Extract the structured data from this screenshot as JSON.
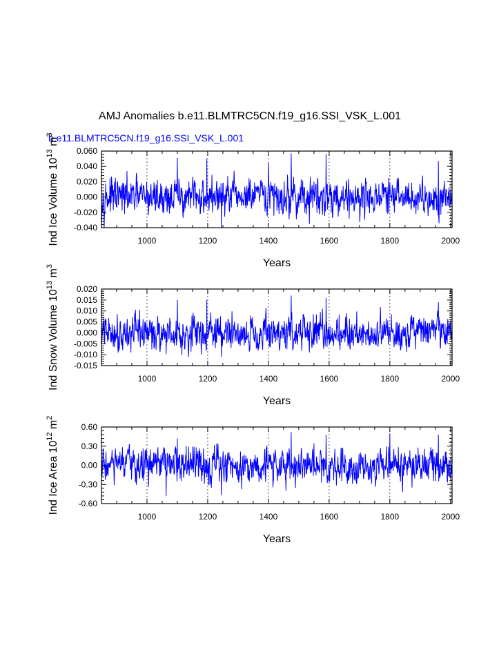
{
  "figure": {
    "title": "AMJ Anomalies b.e11.BLMTRC5CN.f19_g16.SSI_VSK_L.001",
    "case_label": "b.e11.BLMTRC5CN.f19_g16.SSI_VSK_L.001",
    "case_label_color": "#0000ff",
    "line_color": "#0000ff"
  },
  "chart_data": [
    {
      "type": "line",
      "ylabel": "Ind Ice Volume 10^13 m^3",
      "xlabel": "Years",
      "xlim": [
        850,
        2005
      ],
      "ylim": [
        -0.04,
        0.06
      ],
      "xticks": [
        "1000",
        "1200",
        "1400",
        "1600",
        "1800",
        "2000"
      ],
      "yticks": [
        "-0.040",
        "-0.020",
        "0.000",
        "0.020",
        "0.040",
        "0.060"
      ],
      "vgrid": [
        1000,
        1200,
        1400,
        1600,
        1800,
        2000
      ],
      "amplitude": 0.011,
      "peaks": [
        {
          "x": 1100,
          "y": 0.051
        },
        {
          "x": 1197,
          "y": 0.05
        },
        {
          "x": 1475,
          "y": 0.057
        },
        {
          "x": 1590,
          "y": 0.056
        },
        {
          "x": 1245,
          "y": -0.04
        },
        {
          "x": 1535,
          "y": -0.035
        },
        {
          "x": 1960,
          "y": 0.047
        },
        {
          "x": 1400,
          "y": 0.045
        }
      ]
    },
    {
      "type": "line",
      "ylabel": "Ind Snow Volume 10^13 m^3",
      "xlabel": "Years",
      "xlim": [
        850,
        2005
      ],
      "ylim": [
        -0.015,
        0.02
      ],
      "xticks": [
        "1000",
        "1200",
        "1400",
        "1600",
        "1800",
        "2000"
      ],
      "yticks": [
        "-0.015",
        "-0.010",
        "-0.005",
        "0.000",
        "0.005",
        "0.010",
        "0.015",
        "0.020"
      ],
      "vgrid": [
        1000,
        1200,
        1400,
        1600,
        1800,
        2000
      ],
      "amplitude": 0.0037,
      "peaks": [
        {
          "x": 1100,
          "y": 0.015
        },
        {
          "x": 1197,
          "y": 0.015
        },
        {
          "x": 1475,
          "y": 0.017
        },
        {
          "x": 1590,
          "y": 0.016
        },
        {
          "x": 1245,
          "y": -0.011
        },
        {
          "x": 1535,
          "y": -0.009
        },
        {
          "x": 1960,
          "y": 0.014
        }
      ]
    },
    {
      "type": "line",
      "ylabel": "Ind Ice Area 10^12 m^2",
      "xlabel": "Years",
      "xlim": [
        850,
        2005
      ],
      "ylim": [
        -0.6,
        0.6
      ],
      "xticks": [
        "1000",
        "1200",
        "1400",
        "1600",
        "1800",
        "2000"
      ],
      "yticks": [
        "-0.60",
        "-0.30",
        "0.00",
        "0.30",
        "0.60"
      ],
      "vgrid": [
        1000,
        1200,
        1400,
        1600,
        1800,
        2000
      ],
      "amplitude": 0.13,
      "peaks": [
        {
          "x": 1475,
          "y": 0.52
        },
        {
          "x": 1590,
          "y": 0.48
        },
        {
          "x": 1800,
          "y": 0.5
        },
        {
          "x": 1960,
          "y": 0.48
        },
        {
          "x": 1063,
          "y": -0.48
        },
        {
          "x": 1245,
          "y": -0.47
        },
        {
          "x": 1100,
          "y": 0.42
        }
      ]
    }
  ]
}
